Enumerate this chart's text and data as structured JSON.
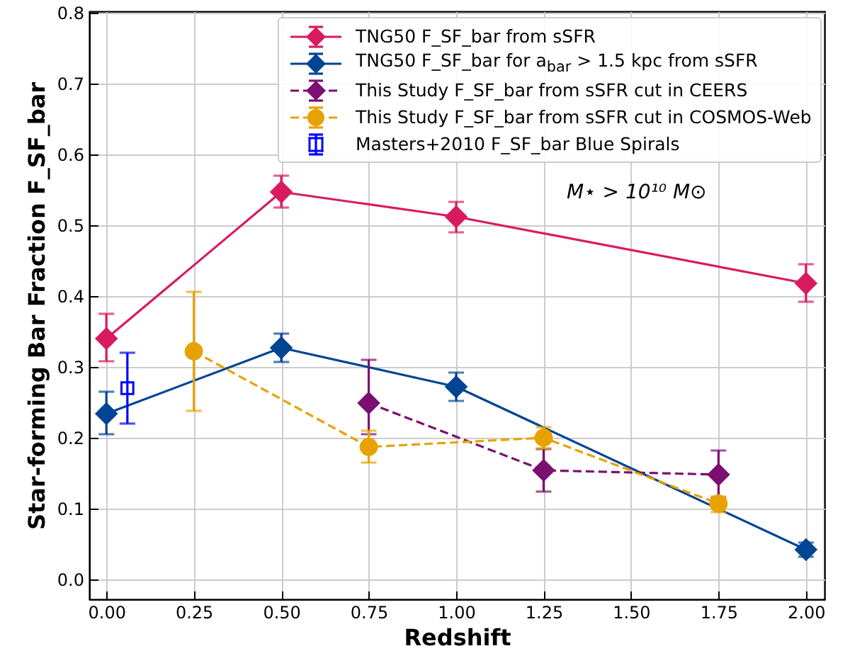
{
  "chart_data": {
    "type": "line",
    "xlabel": "Redshift",
    "ylabel": "Star-forming Bar Fraction F_SF_bar",
    "xlim": [
      -0.049,
      2.053
    ],
    "ylim": [
      -0.028,
      0.802
    ],
    "xticks": [
      {
        "value": 0,
        "label": "0.00"
      },
      {
        "value": 0.25,
        "label": "0.25"
      },
      {
        "value": 0.5,
        "label": "0.50"
      },
      {
        "value": 0.75,
        "label": "0.75"
      },
      {
        "value": 1,
        "label": "1.00"
      },
      {
        "value": 1.25,
        "label": "1.25"
      },
      {
        "value": 1.5,
        "label": "1.50"
      },
      {
        "value": 1.75,
        "label": "1.75"
      },
      {
        "value": 2,
        "label": "2.00"
      }
    ],
    "yticks": [
      {
        "value": 0,
        "label": "0.0"
      },
      {
        "value": 0.1,
        "label": "0.1"
      },
      {
        "value": 0.2,
        "label": "0.2"
      },
      {
        "value": 0.3,
        "label": "0.3"
      },
      {
        "value": 0.4,
        "label": "0.4"
      },
      {
        "value": 0.5,
        "label": "0.5"
      },
      {
        "value": 0.6,
        "label": "0.6"
      },
      {
        "value": 0.7,
        "label": "0.7"
      },
      {
        "value": 0.8,
        "label": "0.8"
      }
    ],
    "grid": true,
    "legend": "top right",
    "annotations": [
      "M⋆ > 10¹⁰ M⊙"
    ],
    "series": [
      {
        "name": "TNG50 F_SF_bar from sSFR",
        "color": "#d81b60",
        "marker": "diamond",
        "line_style": "solid",
        "x": [
          0,
          0.5,
          1,
          2
        ],
        "values": [
          0.34,
          0.547,
          0.512,
          0.418
        ],
        "errors": [
          [
            0.308,
            0.375
          ],
          [
            0.525,
            0.57
          ],
          [
            0.49,
            0.533
          ],
          [
            0.392,
            0.445
          ]
        ]
      },
      {
        "name": "TNG50 F_SF_bar for a$_{bar}$ > 1.5 kpc from sSFR",
        "color": "#004494",
        "marker": "diamond",
        "line_style": "solid",
        "x": [
          0,
          0.5,
          1,
          2
        ],
        "values": [
          0.234,
          0.327,
          0.272,
          0.042
        ],
        "errors": [
          [
            0.205,
            0.265
          ],
          [
            0.307,
            0.347
          ],
          [
            0.252,
            0.292
          ],
          [
            0.032,
            0.052
          ]
        ]
      },
      {
        "name": "This Study F_SF_bar from sSFR cut in CEERS",
        "color": "#7b0f72",
        "marker": "diamond",
        "line_style": "dashed",
        "x": [
          0.75,
          1.25,
          1.75
        ],
        "values": [
          0.249,
          0.154,
          0.148
        ],
        "errors": [
          [
            0.205,
            0.31
          ],
          [
            0.124,
            0.184
          ],
          [
            0.115,
            0.182
          ]
        ]
      },
      {
        "name": "This Study F_SF_bar from sSFR cut in COSMOS-Web",
        "color": "#e8a200",
        "marker": "circle",
        "line_style": "dashed",
        "x": [
          0.25,
          0.75,
          1.25,
          1.75
        ],
        "values": [
          0.322,
          0.187,
          0.2,
          0.107
        ],
        "errors": [
          [
            0.238,
            0.406
          ],
          [
            0.165,
            0.21
          ],
          [
            0.185,
            0.215
          ],
          [
            0.095,
            0.117
          ]
        ]
      },
      {
        "name": "Masters+2010 F_SF_bar Blue Spirals",
        "type": "scatter",
        "color": "#0000ff",
        "marker": "square",
        "x": [
          0.06
        ],
        "values": [
          0.27
        ],
        "errors": [
          [
            0.22,
            0.32
          ]
        ]
      }
    ]
  }
}
